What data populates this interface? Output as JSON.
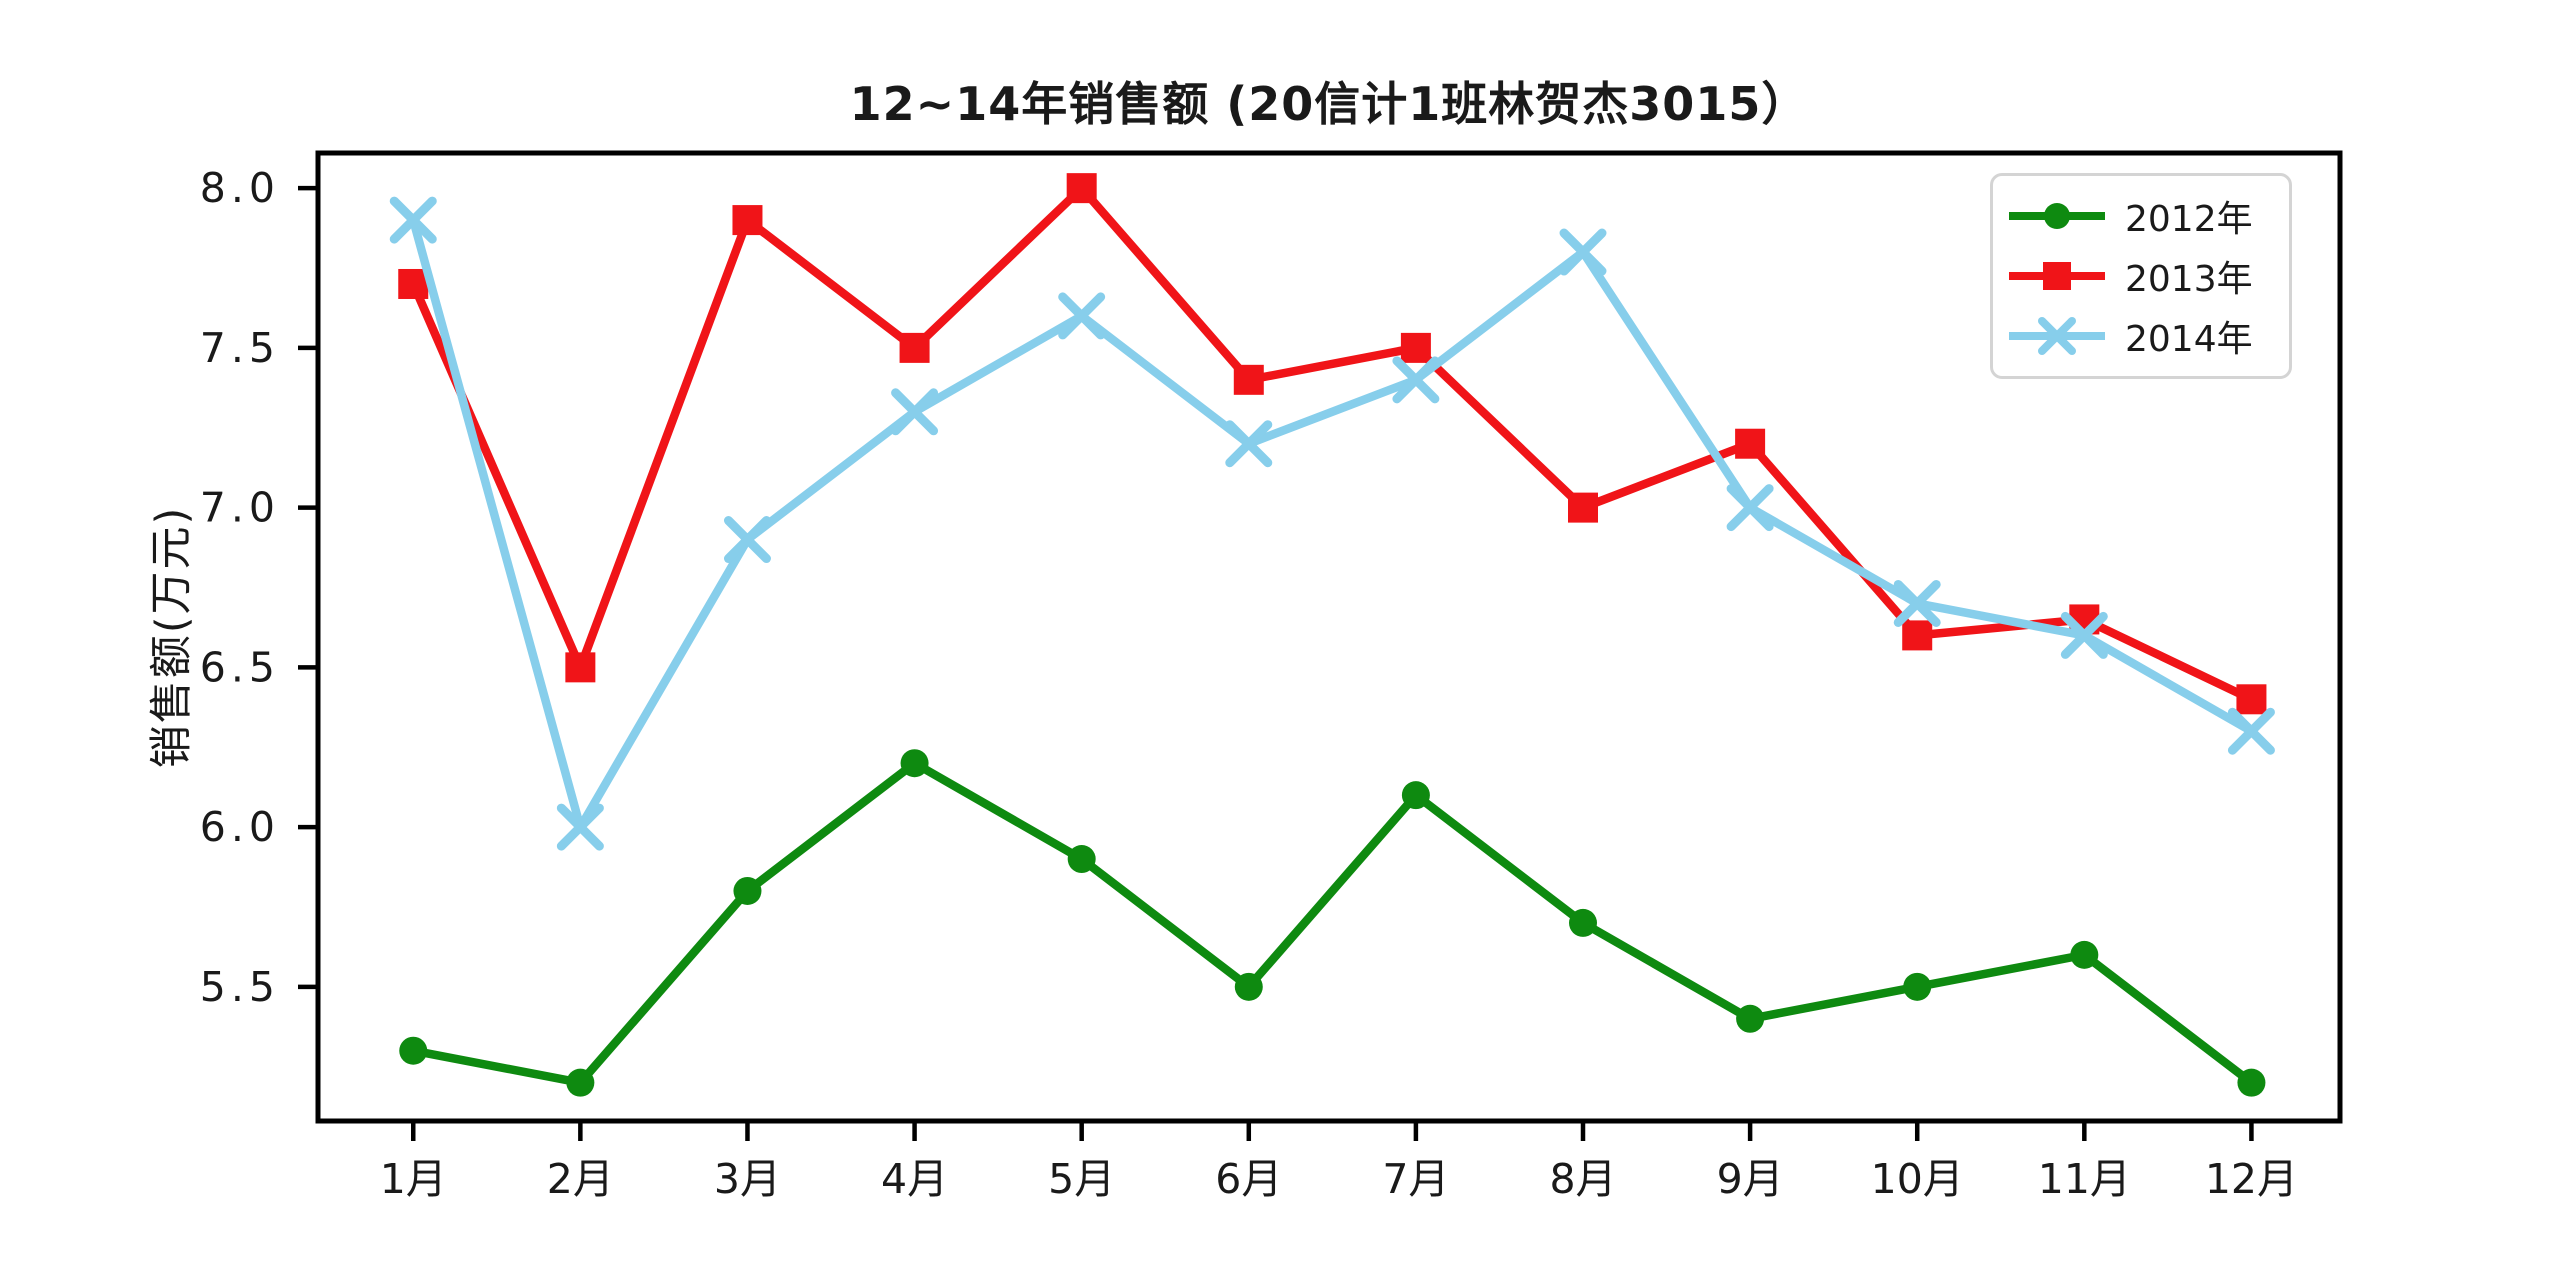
{
  "chart_data": {
    "type": "line",
    "title": "12~14年销售额 (20信计1班林贺杰3015）",
    "ylabel": "销售额(万元)",
    "xlabel": "",
    "categories": [
      "1月",
      "2月",
      "3月",
      "4月",
      "5月",
      "6月",
      "7月",
      "8月",
      "9月",
      "10月",
      "11月",
      "12月"
    ],
    "ytick_labels": [
      "5.5",
      "6.0",
      "6.5",
      "7.0",
      "7.5",
      "8.0"
    ],
    "yticks": [
      5.5,
      6.0,
      6.5,
      7.0,
      7.5,
      8.0
    ],
    "ylim": [
      5.08,
      8.11
    ],
    "xlim": [
      0.43,
      12.53
    ],
    "grid": false,
    "legend_position": "upper right",
    "background_color": "#ffffff",
    "axis_color": "#000000",
    "series": [
      {
        "name": "2012年",
        "color": "#0e8a10",
        "marker": "circle",
        "values": [
          5.3,
          5.2,
          5.8,
          6.2,
          5.9,
          5.5,
          6.1,
          5.7,
          5.4,
          5.5,
          5.6,
          5.2
        ]
      },
      {
        "name": "2013年",
        "color": "#f01418",
        "marker": "square",
        "values": [
          7.7,
          6.5,
          7.9,
          7.5,
          8.0,
          7.4,
          7.5,
          7.0,
          7.2,
          6.6,
          6.65,
          6.4
        ]
      },
      {
        "name": "2014年",
        "color": "#87ceeb",
        "marker": "x",
        "values": [
          7.9,
          6.0,
          6.9,
          7.3,
          7.6,
          7.2,
          7.4,
          7.8,
          7.0,
          6.7,
          6.6,
          6.3
        ]
      }
    ]
  }
}
